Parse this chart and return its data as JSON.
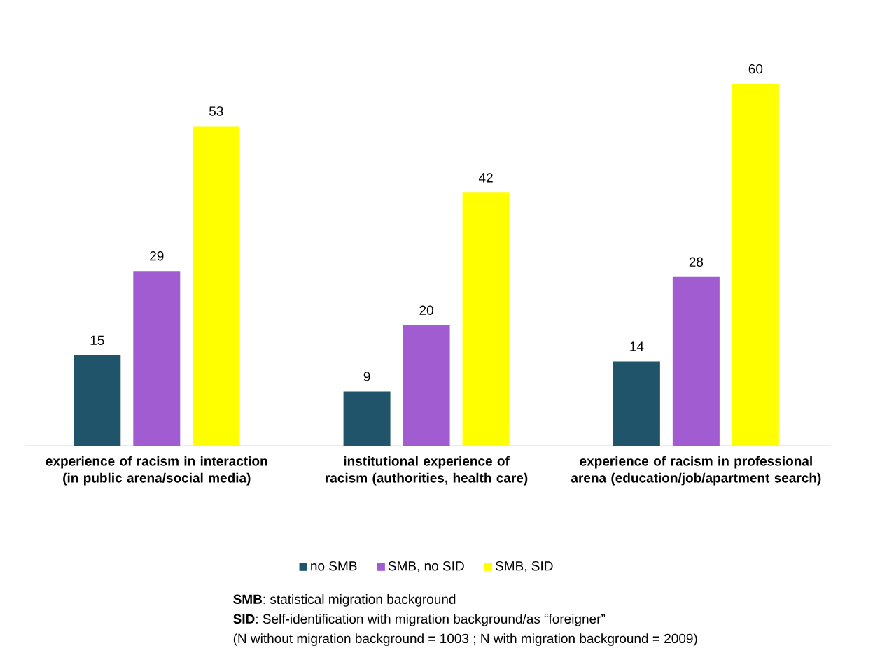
{
  "chart_data": {
    "type": "bar",
    "categories": [
      "experience of racism in interaction (in public arena/social media)",
      "institutional experience of racism (authorities, health care)",
      "experience of racism in professional arena (education/job/apartment search)"
    ],
    "series": [
      {
        "name": "no SMB",
        "color": "#1f546b",
        "values": [
          15,
          9,
          14
        ]
      },
      {
        "name": "SMB, no SID",
        "color": "#a05cd0",
        "values": [
          29,
          20,
          28
        ]
      },
      {
        "name": "SMB, SID",
        "color": "#ffff00",
        "values": [
          53,
          42,
          60
        ]
      }
    ],
    "data_labels": true,
    "legend": "bottom",
    "annotations": [
      "**SMB**: statistical migration background",
      "**SID**: Self-identification with migration background/as “foreigner”",
      "(N without migration background = 1003 ; N with migration background = 2009)"
    ]
  }
}
